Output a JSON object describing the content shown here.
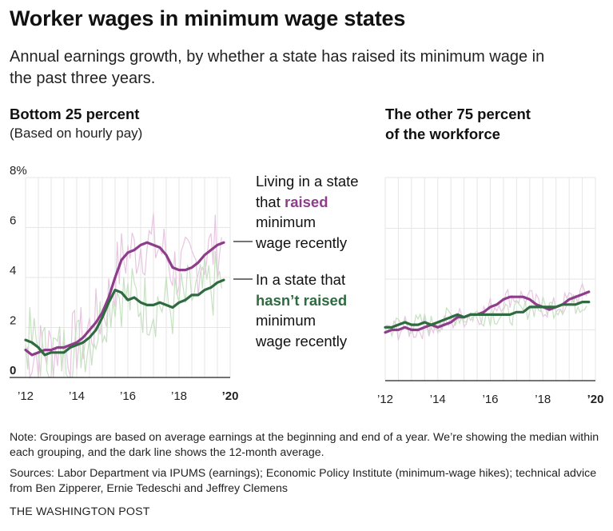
{
  "title": "Worker wages in minimum wage states",
  "subtitle": "Annual earnings growth, by whether a state has raised its minimum wage in the past three years.",
  "panels": [
    {
      "title": "Bottom 25 percent",
      "subtitle": "(Based on hourly pay)"
    },
    {
      "title_line1": "The other 75 percent",
      "title_line2": "of the workforce"
    }
  ],
  "annotations": {
    "raised": {
      "line1": "Living in a state",
      "line2_pre": "that ",
      "line2_bold": "raised",
      "line3": "minimum",
      "line4": "wage recently"
    },
    "not_raised": {
      "line1": "In a state that",
      "line2_bold": "hasn’t raised",
      "line3": "minimum",
      "line4": "wage recently"
    }
  },
  "note": "Note: Groupings are based on average earnings at the beginning and end of a year. We’re showing the median within each grouping, and the dark line shows the 12-month average.",
  "sources": "Sources: Labor Department via IPUMS (earnings); Economic Policy Institute (minimum-wage hikes); technical advice from Ben Zipperer, Ernie Tedeschi and Jeffrey Clemens",
  "credit": "THE WASHINGTON POST",
  "colors": {
    "raised": "#8e3d8b",
    "not_raised": "#2f6b40",
    "raised_light": "#e8c6e1",
    "not_raised_light": "#c7e1c2"
  },
  "chart_data": [
    {
      "type": "line",
      "title": "Bottom 25 percent",
      "xlim": [
        2012,
        2020
      ],
      "ylim": [
        0,
        8
      ],
      "yticks": [
        0,
        2,
        4,
        6,
        8
      ],
      "ytick_labels": [
        "0",
        "2",
        "4",
        "6",
        "8%"
      ],
      "xticks": [
        2012,
        2014,
        2016,
        2018,
        2020
      ],
      "xtick_labels": [
        "’12",
        "’14",
        "’16",
        "’18",
        "’20"
      ],
      "series": [
        {
          "name": "Living in a state that raised minimum wage recently",
          "x": [
            2012.0,
            2012.25,
            2012.5,
            2012.75,
            2013.0,
            2013.25,
            2013.5,
            2013.75,
            2014.0,
            2014.25,
            2014.5,
            2014.75,
            2015.0,
            2015.25,
            2015.5,
            2015.75,
            2016.0,
            2016.25,
            2016.5,
            2016.75,
            2017.0,
            2017.25,
            2017.5,
            2017.75,
            2018.0,
            2018.25,
            2018.5,
            2018.75,
            2019.0,
            2019.25,
            2019.5,
            2019.75
          ],
          "values": [
            1.1,
            0.9,
            1.0,
            1.1,
            1.1,
            1.2,
            1.2,
            1.3,
            1.4,
            1.6,
            1.9,
            2.2,
            2.6,
            3.2,
            4.0,
            4.7,
            5.0,
            5.1,
            5.3,
            5.4,
            5.3,
            5.2,
            4.9,
            4.4,
            4.3,
            4.3,
            4.4,
            4.6,
            4.9,
            5.1,
            5.3,
            5.4
          ]
        },
        {
          "name": "In a state that hasn’t raised minimum wage recently",
          "x": [
            2012.0,
            2012.25,
            2012.5,
            2012.75,
            2013.0,
            2013.25,
            2013.5,
            2013.75,
            2014.0,
            2014.25,
            2014.5,
            2014.75,
            2015.0,
            2015.25,
            2015.5,
            2015.75,
            2016.0,
            2016.25,
            2016.5,
            2016.75,
            2017.0,
            2017.25,
            2017.5,
            2017.75,
            2018.0,
            2018.25,
            2018.5,
            2018.75,
            2019.0,
            2019.25,
            2019.5,
            2019.75
          ],
          "values": [
            1.5,
            1.4,
            1.2,
            0.9,
            1.0,
            1.0,
            1.0,
            1.2,
            1.3,
            1.4,
            1.6,
            1.9,
            2.4,
            3.0,
            3.5,
            3.4,
            3.1,
            3.2,
            3.0,
            2.9,
            2.9,
            3.0,
            2.9,
            2.8,
            3.0,
            3.1,
            3.3,
            3.3,
            3.5,
            3.6,
            3.8,
            3.9
          ]
        }
      ]
    },
    {
      "type": "line",
      "title": "The other 75 percent of the workforce",
      "xlim": [
        2012,
        2020
      ],
      "ylim": [
        0,
        8
      ],
      "xticks": [
        2012,
        2014,
        2016,
        2018,
        2020
      ],
      "xtick_labels": [
        "’12",
        "’14",
        "’16",
        "’18",
        "’20"
      ],
      "series": [
        {
          "name": "Living in a state that raised minimum wage recently",
          "x": [
            2012.0,
            2012.25,
            2012.5,
            2012.75,
            2013.0,
            2013.25,
            2013.5,
            2013.75,
            2014.0,
            2014.25,
            2014.5,
            2014.75,
            2015.0,
            2015.25,
            2015.5,
            2015.75,
            2016.0,
            2016.25,
            2016.5,
            2016.75,
            2017.0,
            2017.25,
            2017.5,
            2017.75,
            2018.0,
            2018.25,
            2018.5,
            2018.75,
            2019.0,
            2019.25,
            2019.5,
            2019.75
          ],
          "values": [
            1.9,
            2.0,
            2.0,
            2.1,
            2.0,
            2.0,
            2.1,
            2.2,
            2.1,
            2.2,
            2.3,
            2.5,
            2.5,
            2.6,
            2.6,
            2.7,
            2.9,
            3.0,
            3.2,
            3.3,
            3.3,
            3.3,
            3.2,
            3.0,
            2.9,
            2.8,
            2.9,
            3.0,
            3.2,
            3.3,
            3.4,
            3.5
          ]
        },
        {
          "name": "In a state that hasn’t raised minimum wage recently",
          "x": [
            2012.0,
            2012.25,
            2012.5,
            2012.75,
            2013.0,
            2013.25,
            2013.5,
            2013.75,
            2014.0,
            2014.25,
            2014.5,
            2014.75,
            2015.0,
            2015.25,
            2015.5,
            2015.75,
            2016.0,
            2016.25,
            2016.5,
            2016.75,
            2017.0,
            2017.25,
            2017.5,
            2017.75,
            2018.0,
            2018.25,
            2018.5,
            2018.75,
            2019.0,
            2019.25,
            2019.5,
            2019.75
          ],
          "values": [
            2.1,
            2.1,
            2.2,
            2.3,
            2.2,
            2.2,
            2.3,
            2.2,
            2.3,
            2.4,
            2.5,
            2.6,
            2.5,
            2.6,
            2.6,
            2.6,
            2.6,
            2.6,
            2.6,
            2.6,
            2.7,
            2.7,
            2.9,
            2.9,
            2.9,
            2.9,
            2.9,
            3.0,
            3.0,
            3.0,
            3.1,
            3.1
          ]
        }
      ]
    }
  ]
}
